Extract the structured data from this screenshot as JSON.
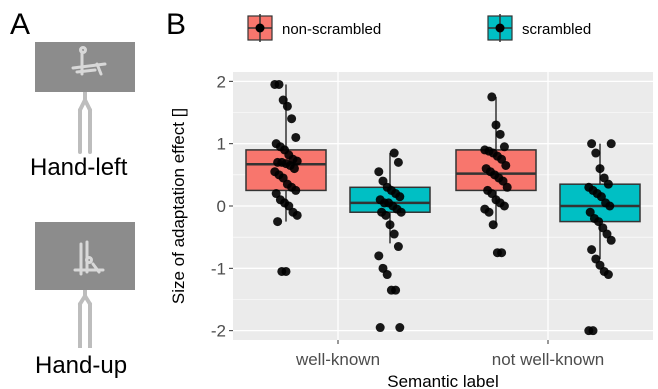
{
  "panels": {
    "a_label": "A",
    "b_label": "B"
  },
  "stimuli": [
    {
      "label": "Hand-left"
    },
    {
      "label": "Hand-up"
    }
  ],
  "colors": {
    "non_scrambled": "#f8766d",
    "scrambled": "#00bfc4",
    "plot_bg": "#ebebeb",
    "grid": "#ffffff",
    "stim_bg": "#8c8c8c"
  },
  "chart_data": {
    "type": "box",
    "title": "",
    "xlabel": "Semantic label",
    "ylabel": "Size of adaptation effect []",
    "ylim": [
      -2.15,
      2.15
    ],
    "yticks": [
      -2,
      -1,
      0,
      1,
      2
    ],
    "categories": [
      "well-known",
      "not well-known"
    ],
    "legend": {
      "placement": "top"
    },
    "series": [
      {
        "name": "non-scrambled",
        "color": "#f8766d",
        "boxes": [
          {
            "category": "well-known",
            "min": -0.25,
            "q1": 0.25,
            "median": 0.67,
            "q3": 0.9,
            "max": 1.95,
            "points": [
              1.95,
              1.95,
              1.7,
              1.6,
              1.4,
              1.1,
              1.0,
              0.95,
              0.9,
              0.82,
              0.75,
              0.72,
              0.7,
              0.7,
              0.68,
              0.65,
              0.6,
              0.55,
              0.5,
              0.45,
              0.35,
              0.3,
              0.25,
              0.2,
              0.1,
              0.05,
              0.0,
              -0.1,
              -0.15,
              -0.25,
              -1.05,
              -1.05
            ]
          },
          {
            "category": "not well-known",
            "min": -0.3,
            "q1": 0.25,
            "median": 0.52,
            "q3": 0.9,
            "max": 1.75,
            "points": [
              1.75,
              1.3,
              1.15,
              0.95,
              0.9,
              0.88,
              0.85,
              0.8,
              0.75,
              0.65,
              0.6,
              0.55,
              0.5,
              0.45,
              0.4,
              0.3,
              0.25,
              0.2,
              0.1,
              0.05,
              0.0,
              -0.05,
              -0.1,
              -0.3,
              -0.75,
              -0.75
            ]
          }
        ]
      },
      {
        "name": "scrambled",
        "color": "#00bfc4",
        "boxes": [
          {
            "category": "well-known",
            "min": -0.6,
            "q1": -0.1,
            "median": 0.05,
            "q3": 0.3,
            "max": 0.85,
            "points": [
              0.85,
              0.7,
              0.55,
              0.4,
              0.3,
              0.25,
              0.2,
              0.15,
              0.1,
              0.05,
              0.05,
              0.0,
              -0.05,
              -0.1,
              -0.1,
              -0.15,
              -0.3,
              -0.45,
              -0.65,
              -0.8,
              -1.0,
              -1.1,
              -1.35,
              -1.35,
              -1.95,
              -1.95
            ]
          },
          {
            "category": "not well-known",
            "min": -0.85,
            "q1": -0.25,
            "median": 0.0,
            "q3": 0.35,
            "max": 1.0,
            "points": [
              1.0,
              1.0,
              0.85,
              0.6,
              0.45,
              0.35,
              0.3,
              0.25,
              0.2,
              0.15,
              0.05,
              0.0,
              -0.1,
              -0.2,
              -0.25,
              -0.35,
              -0.45,
              -0.55,
              -0.7,
              -0.85,
              -0.95,
              -1.05,
              -1.1,
              -2.0,
              -2.0
            ]
          }
        ]
      }
    ]
  }
}
